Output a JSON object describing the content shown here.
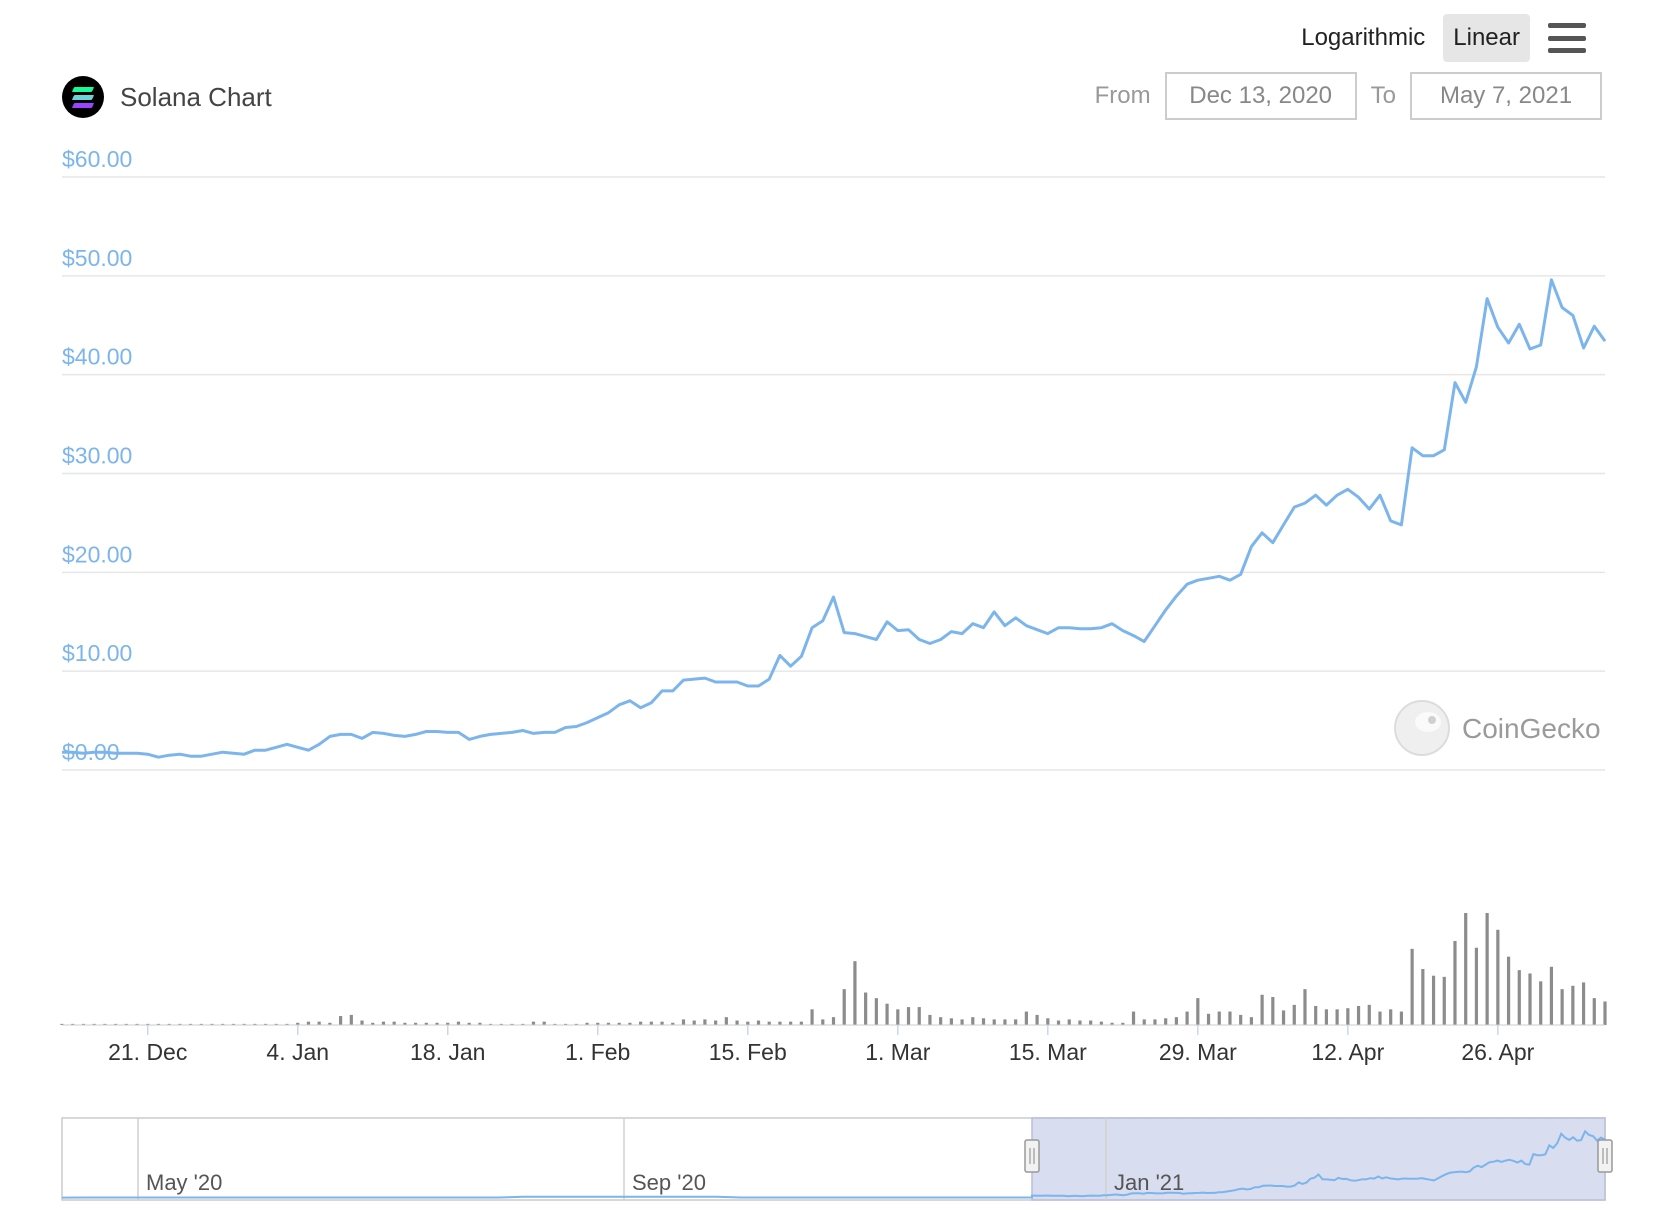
{
  "toolbar": {
    "log_label": "Logarithmic",
    "linear_label": "Linear",
    "menu_icon": "hamburger-menu-icon"
  },
  "header": {
    "title": "Solana Chart",
    "logo_icon": "solana-logo-icon",
    "from_label": "From",
    "from_value": "Dec 13, 2020",
    "to_label": "To",
    "to_value": "May 7, 2021"
  },
  "watermark": {
    "text": "CoinGecko",
    "icon": "coingecko-logo-icon"
  },
  "colors": {
    "price_line": "#7cb5ec",
    "volume_bar": "#8c8c8c",
    "navigator_fill": "#d6dbee",
    "grid": "#e6e6e6"
  },
  "chart_data": {
    "type": "line",
    "title": "Solana Chart",
    "ylim": [
      0,
      60
    ],
    "y_ticks": [
      "$0.00",
      "$10.00",
      "$20.00",
      "$30.00",
      "$40.00",
      "$50.00",
      "$60.00"
    ],
    "y_tick_values": [
      0,
      10,
      20,
      30,
      40,
      50,
      60
    ],
    "x_ticks": [
      "21. Dec",
      "4. Jan",
      "18. Jan",
      "1. Feb",
      "15. Feb",
      "1. Mar",
      "15. Mar",
      "29. Mar",
      "12. Apr",
      "26. Apr"
    ],
    "x_tick_days": [
      8,
      22,
      36,
      50,
      64,
      78,
      92,
      106,
      120,
      134
    ],
    "x_start": "2020-12-13",
    "series": [
      {
        "values": [
          1.8,
          1.8,
          1.7,
          1.8,
          1.8,
          1.7,
          1.7,
          1.7,
          1.6,
          1.3,
          1.5,
          1.6,
          1.4,
          1.4,
          1.6,
          1.8,
          1.7,
          1.6,
          2.0,
          2.0,
          2.3,
          2.6,
          2.3,
          2.0,
          2.6,
          3.4,
          3.6,
          3.6,
          3.2,
          3.8,
          3.7,
          3.5,
          3.4,
          3.6,
          3.9,
          3.9,
          3.8,
          3.8,
          3.1,
          3.4,
          3.6,
          3.7,
          3.8,
          4.0,
          3.7,
          3.8,
          3.8,
          4.3,
          4.4,
          4.8,
          5.3,
          5.8,
          6.6,
          7.0,
          6.3,
          6.8,
          8.0,
          8.0,
          9.1,
          9.2,
          9.3,
          8.9,
          8.9,
          8.9,
          8.5,
          8.5,
          9.2,
          11.6,
          10.5,
          11.5,
          14.4,
          15.1,
          17.5,
          13.9,
          13.8,
          13.5,
          13.2,
          15.0,
          14.1,
          14.2,
          13.2,
          12.8,
          13.2,
          14.0,
          13.8,
          14.8,
          14.4,
          16.0,
          14.6,
          15.4,
          14.6,
          14.2,
          13.8,
          14.4,
          14.4,
          14.3,
          14.3,
          14.4,
          14.8,
          14.1,
          13.6,
          13.0,
          14.6,
          16.2,
          17.6,
          18.8,
          19.2,
          19.4,
          19.6,
          19.2,
          19.8,
          22.6,
          24.0,
          23.0,
          24.8,
          26.6,
          27.0,
          27.8,
          26.8,
          27.8,
          28.4,
          27.6,
          26.4,
          27.8,
          25.2,
          24.8,
          32.6,
          31.8,
          31.8,
          32.4,
          39.2,
          37.2,
          40.8,
          47.7,
          44.8,
          43.2,
          45.1,
          42.6,
          43.0,
          49.6,
          46.8,
          46.0,
          42.7,
          44.9,
          43.4
        ]
      }
    ],
    "volume_relative": [
      0.01,
      0.01,
      0.01,
      0.01,
      0.01,
      0.01,
      0.01,
      0.01,
      0.01,
      0.01,
      0.01,
      0.01,
      0.01,
      0.01,
      0.01,
      0.01,
      0.01,
      0.01,
      0.01,
      0.01,
      0.01,
      0.01,
      0.02,
      0.03,
      0.03,
      0.02,
      0.08,
      0.09,
      0.04,
      0.02,
      0.03,
      0.03,
      0.02,
      0.02,
      0.02,
      0.02,
      0.02,
      0.03,
      0.02,
      0.02,
      0.01,
      0.01,
      0.01,
      0.01,
      0.03,
      0.03,
      0.01,
      0.01,
      0.01,
      0.02,
      0.02,
      0.02,
      0.02,
      0.02,
      0.03,
      0.03,
      0.03,
      0.02,
      0.05,
      0.04,
      0.05,
      0.04,
      0.07,
      0.04,
      0.03,
      0.04,
      0.03,
      0.03,
      0.03,
      0.03,
      0.14,
      0.05,
      0.07,
      0.32,
      0.57,
      0.29,
      0.24,
      0.19,
      0.14,
      0.16,
      0.16,
      0.09,
      0.07,
      0.06,
      0.05,
      0.07,
      0.06,
      0.05,
      0.05,
      0.05,
      0.12,
      0.09,
      0.06,
      0.04,
      0.05,
      0.04,
      0.04,
      0.03,
      0.02,
      0.02,
      0.12,
      0.05,
      0.05,
      0.06,
      0.07,
      0.12,
      0.24,
      0.1,
      0.12,
      0.12,
      0.09,
      0.07,
      0.27,
      0.25,
      0.13,
      0.18,
      0.32,
      0.17,
      0.14,
      0.14,
      0.15,
      0.17,
      0.18,
      0.12,
      0.14,
      0.12,
      0.68,
      0.5,
      0.44,
      0.43,
      0.75,
      1.0,
      0.69,
      1.0,
      0.85,
      0.61,
      0.49,
      0.46,
      0.39,
      0.52,
      0.32,
      0.35,
      0.38,
      0.24,
      0.21
    ],
    "navigator": {
      "x_ticks": [
        "May '20",
        "Sep '20",
        "Jan '21"
      ],
      "selected_range": [
        "Dec 13, 2020",
        "May 7, 2021"
      ]
    }
  }
}
